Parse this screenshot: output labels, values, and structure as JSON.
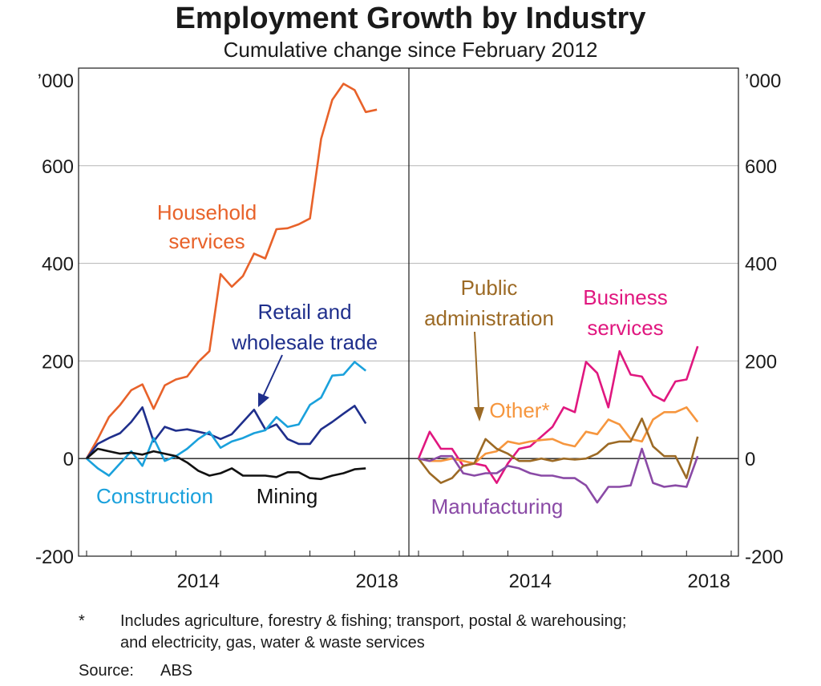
{
  "title": "Employment Growth by Industry",
  "subtitle": "Cumulative change since February 2012",
  "footnote": {
    "marker": "*",
    "line1": "Includes agriculture, forestry & fishing; transport, postal & warehousing;",
    "line2": "and electricity, gas, water & waste services"
  },
  "source": {
    "label": "Source:",
    "value": "ABS"
  },
  "chart_data": {
    "type": "line",
    "unit_label": "’000",
    "ylim": [
      -200,
      800
    ],
    "yticks": [
      -200,
      0,
      200,
      400,
      600
    ],
    "ytick_labels": [
      "-200",
      "0",
      "200",
      "400",
      "600"
    ],
    "x_range": [
      2012.0,
      2019.0
    ],
    "xticks": [
      2014,
      2018
    ],
    "minor_xticks": [
      2012,
      2013,
      2014,
      2015,
      2016,
      2017,
      2018,
      2019
    ],
    "grid": true,
    "panels": [
      {
        "name": "left",
        "series": [
          {
            "name": "Household services",
            "color": "#e8622a",
            "x": [
              2012.0,
              2012.25,
              2012.5,
              2012.75,
              2013.0,
              2013.25,
              2013.5,
              2013.75,
              2014.0,
              2014.25,
              2014.5,
              2014.75,
              2015.0,
              2015.25,
              2015.5,
              2015.75,
              2016.0,
              2016.25,
              2016.5,
              2016.75,
              2017.0,
              2017.25,
              2017.5,
              2017.75,
              2018.0,
              2018.25,
              2018.5
            ],
            "y": [
              0,
              40,
              85,
              110,
              140,
              152,
              102,
              150,
              162,
              168,
              198,
              220,
              378,
              352,
              374,
              420,
              410,
              470,
              472,
              480,
              492,
              655,
              735,
              768,
              755,
              710,
              715
            ]
          },
          {
            "name": "Retail and wholesale trade",
            "color": "#1f2f8c",
            "x": [
              2012.0,
              2012.25,
              2012.5,
              2012.75,
              2013.0,
              2013.25,
              2013.5,
              2013.75,
              2014.0,
              2014.25,
              2014.5,
              2014.75,
              2015.0,
              2015.25,
              2015.5,
              2015.75,
              2016.0,
              2016.25,
              2016.5,
              2016.75,
              2017.0,
              2017.25,
              2017.5,
              2017.75,
              2018.0,
              2018.25
            ],
            "y": [
              0,
              30,
              42,
              52,
              75,
              105,
              35,
              65,
              57,
              60,
              55,
              50,
              40,
              50,
              75,
              100,
              60,
              70,
              40,
              30,
              30,
              60,
              75,
              92,
              108,
              72
            ]
          },
          {
            "name": "Construction",
            "color": "#1aa1dc",
            "x": [
              2012.0,
              2012.25,
              2012.5,
              2012.75,
              2013.0,
              2013.25,
              2013.5,
              2013.75,
              2014.0,
              2014.25,
              2014.5,
              2014.75,
              2015.0,
              2015.25,
              2015.5,
              2015.75,
              2016.0,
              2016.25,
              2016.5,
              2016.75,
              2017.0,
              2017.25,
              2017.5,
              2017.75,
              2018.0,
              2018.25
            ],
            "y": [
              0,
              -20,
              -35,
              -10,
              15,
              -15,
              42,
              -5,
              5,
              20,
              40,
              55,
              22,
              35,
              42,
              52,
              58,
              85,
              65,
              70,
              110,
              125,
              170,
              172,
              198,
              180
            ]
          },
          {
            "name": "Mining",
            "color": "#111111",
            "x": [
              2012.0,
              2012.25,
              2012.5,
              2012.75,
              2013.0,
              2013.25,
              2013.5,
              2013.75,
              2014.0,
              2014.25,
              2014.5,
              2014.75,
              2015.0,
              2015.25,
              2015.5,
              2015.75,
              2016.0,
              2016.25,
              2016.5,
              2016.75,
              2017.0,
              2017.25,
              2017.5,
              2017.75,
              2018.0,
              2018.25
            ],
            "y": [
              0,
              20,
              15,
              10,
              12,
              8,
              15,
              10,
              5,
              -8,
              -25,
              -35,
              -30,
              -20,
              -35,
              -35,
              -35,
              -38,
              -28,
              -28,
              -40,
              -42,
              -35,
              -30,
              -22,
              -20
            ]
          }
        ],
        "annotations": [
          {
            "text": "Household services",
            "lines": [
              "Household",
              "services"
            ],
            "color": "#e8622a"
          },
          {
            "text": "Retail and wholesale trade",
            "lines": [
              "Retail and",
              "wholesale trade"
            ],
            "color": "#1f2f8c"
          },
          {
            "text": "Construction",
            "lines": [
              "Construction"
            ],
            "color": "#1aa1dc"
          },
          {
            "text": "Mining",
            "lines": [
              "Mining"
            ],
            "color": "#111111"
          }
        ]
      },
      {
        "name": "right",
        "series": [
          {
            "name": "Business services",
            "color": "#e0177f",
            "x": [
              2012.0,
              2012.25,
              2012.5,
              2012.75,
              2013.0,
              2013.25,
              2013.5,
              2013.75,
              2014.0,
              2014.25,
              2014.5,
              2014.75,
              2015.0,
              2015.25,
              2015.5,
              2015.75,
              2016.0,
              2016.25,
              2016.5,
              2016.75,
              2017.0,
              2017.25,
              2017.5,
              2017.75,
              2018.0,
              2018.25
            ],
            "y": [
              0,
              55,
              20,
              20,
              -15,
              -10,
              -15,
              -50,
              -10,
              20,
              25,
              45,
              65,
              105,
              95,
              198,
              175,
              105,
              220,
              172,
              168,
              130,
              118,
              158,
              162,
              230
            ]
          },
          {
            "name": "Other*",
            "color": "#f6963e",
            "x": [
              2012.0,
              2012.25,
              2012.5,
              2012.75,
              2013.0,
              2013.25,
              2013.5,
              2013.75,
              2014.0,
              2014.25,
              2014.5,
              2014.75,
              2015.0,
              2015.25,
              2015.5,
              2015.75,
              2016.0,
              2016.25,
              2016.5,
              2016.75,
              2017.0,
              2017.25,
              2017.5,
              2017.75,
              2018.0,
              2018.25
            ],
            "y": [
              0,
              -5,
              -5,
              0,
              -5,
              -10,
              10,
              15,
              35,
              30,
              35,
              38,
              40,
              30,
              25,
              55,
              50,
              80,
              70,
              40,
              35,
              80,
              95,
              95,
              105,
              75
            ]
          },
          {
            "name": "Public administration",
            "color": "#9c6a25",
            "x": [
              2012.0,
              2012.25,
              2012.5,
              2012.75,
              2013.0,
              2013.25,
              2013.5,
              2013.75,
              2014.0,
              2014.25,
              2014.5,
              2014.75,
              2015.0,
              2015.25,
              2015.5,
              2015.75,
              2016.0,
              2016.25,
              2016.5,
              2016.75,
              2017.0,
              2017.25,
              2017.5,
              2017.75,
              2018.0,
              2018.25
            ],
            "y": [
              0,
              -30,
              -50,
              -40,
              -15,
              -10,
              40,
              20,
              10,
              -5,
              -5,
              0,
              -5,
              0,
              -2,
              0,
              10,
              30,
              35,
              35,
              82,
              25,
              5,
              5,
              -40,
              45
            ]
          },
          {
            "name": "Manufacturing",
            "color": "#8a4aa6",
            "x": [
              2012.0,
              2012.25,
              2012.5,
              2012.75,
              2013.0,
              2013.25,
              2013.5,
              2013.75,
              2014.0,
              2014.25,
              2014.5,
              2014.75,
              2015.0,
              2015.25,
              2015.5,
              2015.75,
              2016.0,
              2016.25,
              2016.5,
              2016.75,
              2017.0,
              2017.25,
              2017.5,
              2017.75,
              2018.0,
              2018.25
            ],
            "y": [
              0,
              -5,
              5,
              5,
              -30,
              -35,
              -30,
              -30,
              -15,
              -20,
              -30,
              -35,
              -35,
              -40,
              -40,
              -55,
              -90,
              -58,
              -58,
              -55,
              20,
              -50,
              -58,
              -55,
              -58,
              5
            ]
          }
        ],
        "annotations": [
          {
            "text": "Public administration",
            "lines": [
              "Public",
              "administration"
            ],
            "color": "#9c6a25"
          },
          {
            "text": "Business services",
            "lines": [
              "Business",
              "services"
            ],
            "color": "#e0177f"
          },
          {
            "text": "Other*",
            "lines": [
              "Other*"
            ],
            "color": "#f6963e"
          },
          {
            "text": "Manufacturing",
            "lines": [
              "Manufacturing"
            ],
            "color": "#8a4aa6"
          }
        ]
      }
    ]
  }
}
